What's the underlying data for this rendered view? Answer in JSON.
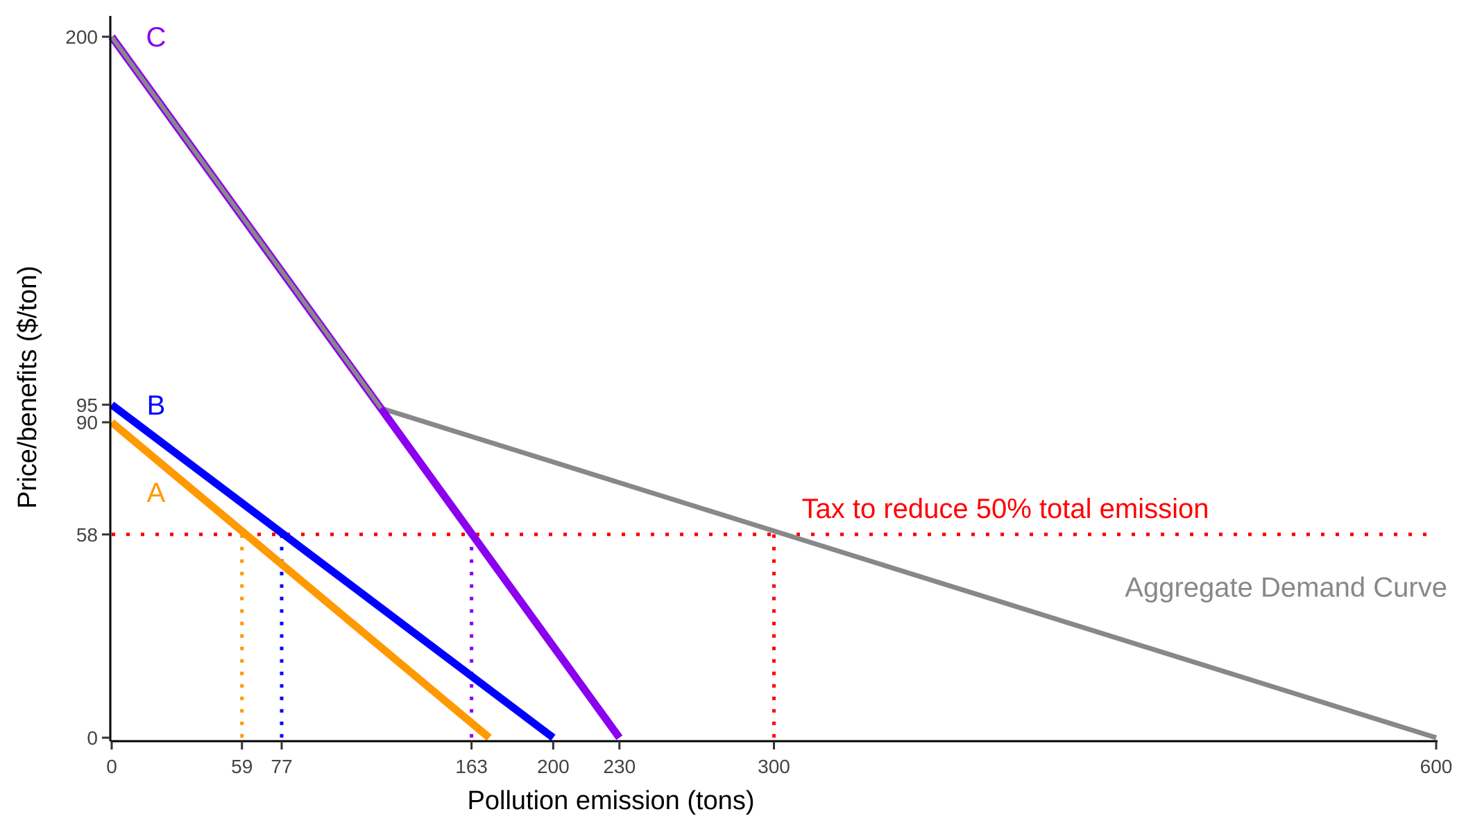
{
  "chart_data": {
    "type": "line",
    "xlabel": "Pollution emission (tons)",
    "ylabel": "Price/benefits ($/ton)",
    "xlim": [
      0,
      600
    ],
    "ylim": [
      0,
      200
    ],
    "x_ticks": [
      0,
      59,
      77,
      163,
      200,
      230,
      300,
      600
    ],
    "y_ticks": [
      0,
      58,
      90,
      95,
      200
    ],
    "grid": false,
    "series": [
      {
        "name": "A",
        "color": "#FF9900",
        "x": [
          0,
          171
        ],
        "y": [
          90,
          0
        ]
      },
      {
        "name": "B",
        "color": "#0000FF",
        "x": [
          0,
          200
        ],
        "y": [
          95,
          0
        ]
      },
      {
        "name": "C",
        "color": "#8B00EE",
        "x": [
          0,
          230
        ],
        "y": [
          200,
          0
        ]
      },
      {
        "name": "Aggregate Demand Curve",
        "color": "#888888",
        "x": [
          0,
          122,
          600
        ],
        "y": [
          200,
          94,
          0
        ]
      }
    ],
    "tax": {
      "label": "Tax to reduce 50% total emission",
      "value": 58,
      "color": "#FF0000"
    },
    "drop_lines": [
      {
        "x": 59,
        "color": "#FF9900"
      },
      {
        "x": 77,
        "color": "#0000FF"
      },
      {
        "x": 163,
        "color": "#8B00EE"
      },
      {
        "x": 300,
        "color": "#FF0000"
      }
    ]
  }
}
